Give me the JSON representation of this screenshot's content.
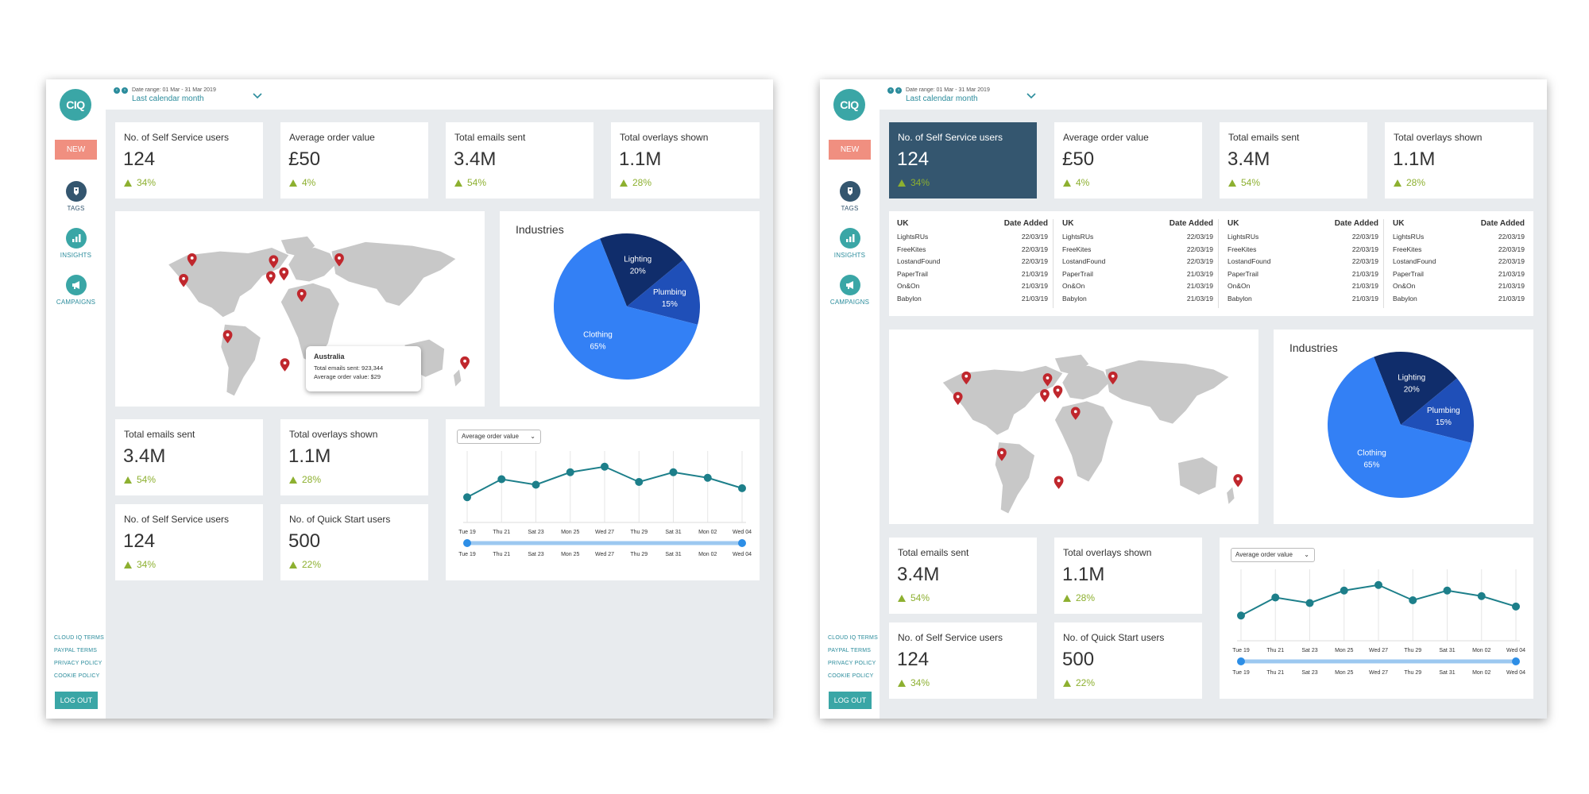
{
  "sidebar": {
    "logo": "CIQ",
    "new_label": "NEW",
    "nav": [
      {
        "label": "TAGS",
        "icon": "tag-icon"
      },
      {
        "label": "INSIGHTS",
        "icon": "bar-chart-icon"
      },
      {
        "label": "CAMPAIGNS",
        "icon": "megaphone-icon"
      }
    ],
    "links": [
      "CLOUD IQ TERMS",
      "PAYPAL TERMS",
      "PRIVACY POLICY",
      "COOKIE POLICY"
    ],
    "logout": "LOG OUT"
  },
  "topbar": {
    "date_range_label": "Date range:  01 Mar - 31 Mar 2019",
    "period": "Last calendar month"
  },
  "kpi_top": [
    {
      "label": "No. of Self Service users",
      "value": "124",
      "trend": "34%"
    },
    {
      "label": "Average order value",
      "value": "£50",
      "trend": "4%"
    },
    {
      "label": "Total emails sent",
      "value": "3.4M",
      "trend": "54%"
    },
    {
      "label": "Total overlays shown",
      "value": "1.1M",
      "trend": "28%"
    }
  ],
  "kpi_bottom": [
    {
      "label": "Total emails sent",
      "value": "3.4M",
      "trend": "54%"
    },
    {
      "label": "Total overlays shown",
      "value": "1.1M",
      "trend": "28%"
    },
    {
      "label": "No. of Self Service users",
      "value": "124",
      "trend": "34%"
    },
    {
      "label": "No. of Quick Start users",
      "value": "500",
      "trend": "22%"
    }
  ],
  "industries": {
    "title": "Industries",
    "slices": [
      {
        "name": "Lighting",
        "pct": "20%",
        "value": 20
      },
      {
        "name": "Plumbing",
        "pct": "15%",
        "value": 15
      },
      {
        "name": "Clothing",
        "pct": "65%",
        "value": 65
      }
    ]
  },
  "tooltip": {
    "title": "Australia",
    "line1": "Total emails sent: 923,344",
    "line2": "Average order value: $29"
  },
  "line_chart": {
    "selector": "Average order value",
    "x": [
      "Tue 19",
      "Thu 21",
      "Sat 23",
      "Mon 25",
      "Wed 27",
      "Thu 29",
      "Sat 31",
      "Mon 02",
      "Wed 04"
    ],
    "y": [
      34,
      60,
      52,
      70,
      78,
      56,
      70,
      62,
      47
    ]
  },
  "users_table": {
    "col1": "UK",
    "col2": "Date Added",
    "rows": [
      [
        "LightsRUs",
        "22/03/19"
      ],
      [
        "FreeKites",
        "22/03/19"
      ],
      [
        "LostandFound",
        "22/03/19"
      ],
      [
        "PaperTrail",
        "21/03/19"
      ],
      [
        "On&On",
        "21/03/19"
      ],
      [
        "Babylon",
        "21/03/19"
      ]
    ]
  },
  "colors": {
    "accent": "#3aa6a6",
    "highlight": "#34566f",
    "trend": "#8db030",
    "pin": "#c0272d",
    "pie_light": "#3380f5",
    "pie_mid": "#1f4fb8",
    "pie_dark": "#102d6b"
  }
}
